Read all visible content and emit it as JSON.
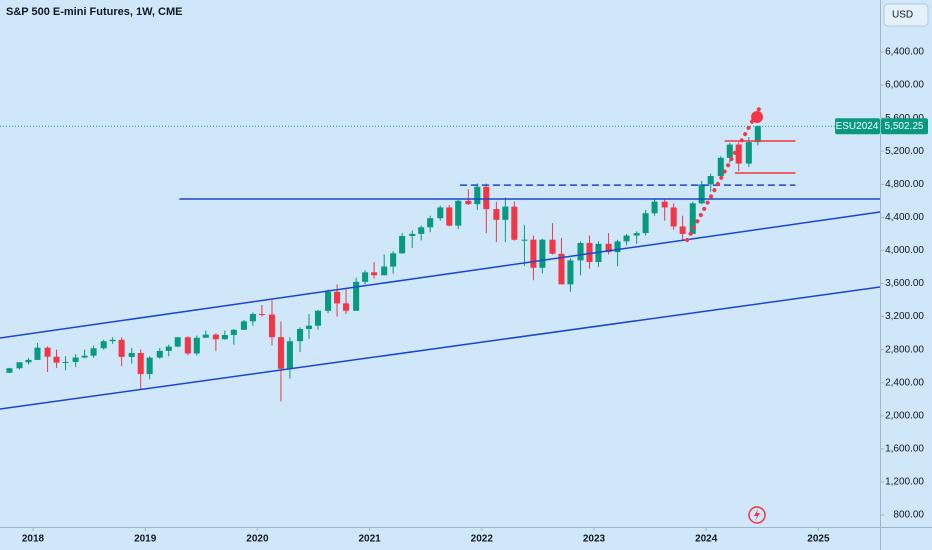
{
  "chart_data": {
    "type": "candlestick",
    "title": "S&P 500 E-mini Futures, 1W, CME",
    "currency": "USD",
    "symbol": "ESU2024",
    "up_color": "#089981",
    "down_color": "#f23645",
    "line_color": "#1848cc",
    "xlim": [
      2017.706,
      2025.549
    ],
    "xticks": [
      2018,
      2019,
      2020,
      2021,
      2022,
      2023,
      2024,
      2025
    ],
    "ylim": [
      655,
      7029
    ],
    "yticks": [
      {
        "value": 800,
        "label": "800.00"
      },
      {
        "value": 1200,
        "label": "1,200.00"
      },
      {
        "value": 1600,
        "label": "1,600.00"
      },
      {
        "value": 2000,
        "label": "2,000.00"
      },
      {
        "value": 2400,
        "label": "2,400.00"
      },
      {
        "value": 2800,
        "label": "2,800.00"
      },
      {
        "value": 3200,
        "label": "3,200.00"
      },
      {
        "value": 3600,
        "label": "3,600.00"
      },
      {
        "value": 4000,
        "label": "4,000.00"
      },
      {
        "value": 4400,
        "label": "4,400.00"
      },
      {
        "value": 4800,
        "label": "4,800.00"
      },
      {
        "value": 5200,
        "label": "5,200.00"
      },
      {
        "value": 5600,
        "label": "5,600.00"
      },
      {
        "value": 6000,
        "label": "6,000.00"
      },
      {
        "value": 6400,
        "label": "6,400.00"
      }
    ],
    "x": [
      2017.79,
      2017.88,
      2017.96,
      2018.04,
      2018.13,
      2018.21,
      2018.29,
      2018.38,
      2018.46,
      2018.54,
      2018.63,
      2018.71,
      2018.79,
      2018.88,
      2018.96,
      2019.04,
      2019.13,
      2019.21,
      2019.29,
      2019.38,
      2019.46,
      2019.54,
      2019.63,
      2019.71,
      2019.79,
      2019.88,
      2019.96,
      2020.04,
      2020.13,
      2020.21,
      2020.29,
      2020.38,
      2020.46,
      2020.54,
      2020.63,
      2020.71,
      2020.79,
      2020.88,
      2020.96,
      2021.04,
      2021.13,
      2021.21,
      2021.29,
      2021.38,
      2021.46,
      2021.54,
      2021.63,
      2021.71,
      2021.79,
      2021.88,
      2021.96,
      2022.04,
      2022.13,
      2022.21,
      2022.29,
      2022.38,
      2022.46,
      2022.54,
      2022.63,
      2022.71,
      2022.79,
      2022.88,
      2022.96,
      2023.04,
      2023.13,
      2023.21,
      2023.29,
      2023.38,
      2023.46,
      2023.54,
      2023.63,
      2023.71,
      2023.79,
      2023.88,
      2023.96,
      2024.04,
      2024.13,
      2024.21,
      2024.29,
      2024.38,
      2024.46
    ],
    "open": [
      2520,
      2575,
      2647,
      2676,
      2824,
      2714,
      2643,
      2651,
      2705,
      2727,
      2817,
      2902,
      2919,
      2712,
      2760,
      2505,
      2704,
      2785,
      2837,
      2950,
      2754,
      2944,
      2982,
      2926,
      2977,
      3040,
      3143,
      3231,
      3224,
      2951,
      2569,
      2902,
      3050,
      3090,
      3270,
      3500,
      3360,
      3270,
      3620,
      3735,
      3700,
      3805,
      3965,
      4175,
      4200,
      4280,
      4390,
      4520,
      4300,
      4600,
      4560,
      4770,
      4500,
      4370,
      4530,
      4130,
      4130,
      3790,
      4130,
      3960,
      3590,
      3880,
      4090,
      3860,
      4080,
      3980,
      4110,
      4180,
      4210,
      4450,
      4590,
      4520,
      4290,
      4200,
      4570,
      4800,
      4900,
      5120,
      5280,
      5050,
      5310
    ],
    "high": [
      2580,
      2650,
      2700,
      2880,
      2840,
      2800,
      2720,
      2745,
      2800,
      2850,
      2920,
      2950,
      2950,
      2820,
      2800,
      2720,
      2820,
      2860,
      2955,
      2960,
      2970,
      3030,
      3000,
      3030,
      3050,
      3160,
      3250,
      3340,
      3397,
      3140,
      2950,
      3070,
      3230,
      3280,
      3530,
      3590,
      3550,
      3670,
      3760,
      3860,
      3950,
      3990,
      4210,
      4240,
      4300,
      4420,
      4540,
      4550,
      4610,
      4740,
      4810,
      4810,
      4590,
      4640,
      4590,
      4310,
      4180,
      4140,
      4330,
      4150,
      3910,
      4110,
      4180,
      4110,
      4210,
      4130,
      4200,
      4230,
      4490,
      4630,
      4630,
      4570,
      4420,
      4590,
      4840,
      4930,
      5140,
      5300,
      5310,
      5370,
      5510
    ],
    "low": [
      2515,
      2560,
      2620,
      2676,
      2530,
      2580,
      2550,
      2590,
      2695,
      2700,
      2800,
      2870,
      2600,
      2630,
      2320,
      2440,
      2690,
      2720,
      2830,
      2730,
      2730,
      2945,
      2780,
      2920,
      2860,
      3040,
      3090,
      3200,
      2850,
      2174,
      2450,
      2770,
      2930,
      3040,
      3240,
      3200,
      3230,
      3270,
      3590,
      3660,
      3700,
      3720,
      3960,
      4030,
      4120,
      4220,
      4360,
      4290,
      4260,
      4550,
      4490,
      4210,
      4100,
      4100,
      4120,
      3810,
      3640,
      3720,
      3950,
      3590,
      3500,
      3700,
      3780,
      3800,
      3950,
      3810,
      4060,
      4080,
      4180,
      4420,
      4360,
      4250,
      4120,
      4200,
      4560,
      4710,
      4870,
      5060,
      4960,
      5010,
      5270
    ],
    "close": [
      2575,
      2647,
      2676,
      2824,
      2714,
      2643,
      2651,
      2705,
      2727,
      2817,
      2902,
      2919,
      2712,
      2760,
      2505,
      2704,
      2785,
      2837,
      2950,
      2754,
      2944,
      2982,
      2926,
      2977,
      3040,
      3143,
      3231,
      3224,
      2951,
      2569,
      2902,
      3050,
      3090,
      3270,
      3500,
      3360,
      3270,
      3620,
      3735,
      3700,
      3805,
      3965,
      4175,
      4200,
      4280,
      4390,
      4520,
      4300,
      4600,
      4560,
      4770,
      4500,
      4370,
      4530,
      4130,
      4130,
      3790,
      4130,
      3960,
      3590,
      3880,
      4090,
      3860,
      4080,
      3980,
      4110,
      4180,
      4210,
      4450,
      4590,
      4520,
      4290,
      4200,
      4570,
      4800,
      4900,
      5120,
      5280,
      5050,
      5310,
      5502.25
    ],
    "last_price": {
      "value": 5502.25,
      "label": "5,502.25"
    },
    "lines": [
      {
        "color": "#1848cc",
        "dash": "solid",
        "x": [
          2017.706,
          2025.549
        ],
        "y": [
          2941,
          4465
        ]
      },
      {
        "color": "#1848cc",
        "dash": "solid",
        "x": [
          2017.706,
          2025.549
        ],
        "y": [
          2082,
          3558
        ]
      },
      {
        "color": "#1848cc",
        "dash": "solid",
        "x": [
          2019.31,
          2025.549
        ],
        "y": [
          4622,
          4622
        ]
      },
      {
        "color": "#1848cc",
        "dash": "dashed",
        "x": [
          2021.81,
          2024.79
        ],
        "y": [
          4790,
          4790
        ]
      },
      {
        "color": "#f23645",
        "dash": "solid",
        "x": [
          2024.17,
          2024.79
        ],
        "y": [
          5323,
          5323
        ]
      },
      {
        "color": "#f23645",
        "dash": "solid",
        "x": [
          2024.26,
          2024.79
        ],
        "y": [
          4936,
          4936
        ]
      },
      {
        "color": "#f23645",
        "dash": "dotted",
        "x": [
          2023.83,
          2024.48
        ],
        "y": [
          4126,
          5735
        ]
      }
    ]
  }
}
